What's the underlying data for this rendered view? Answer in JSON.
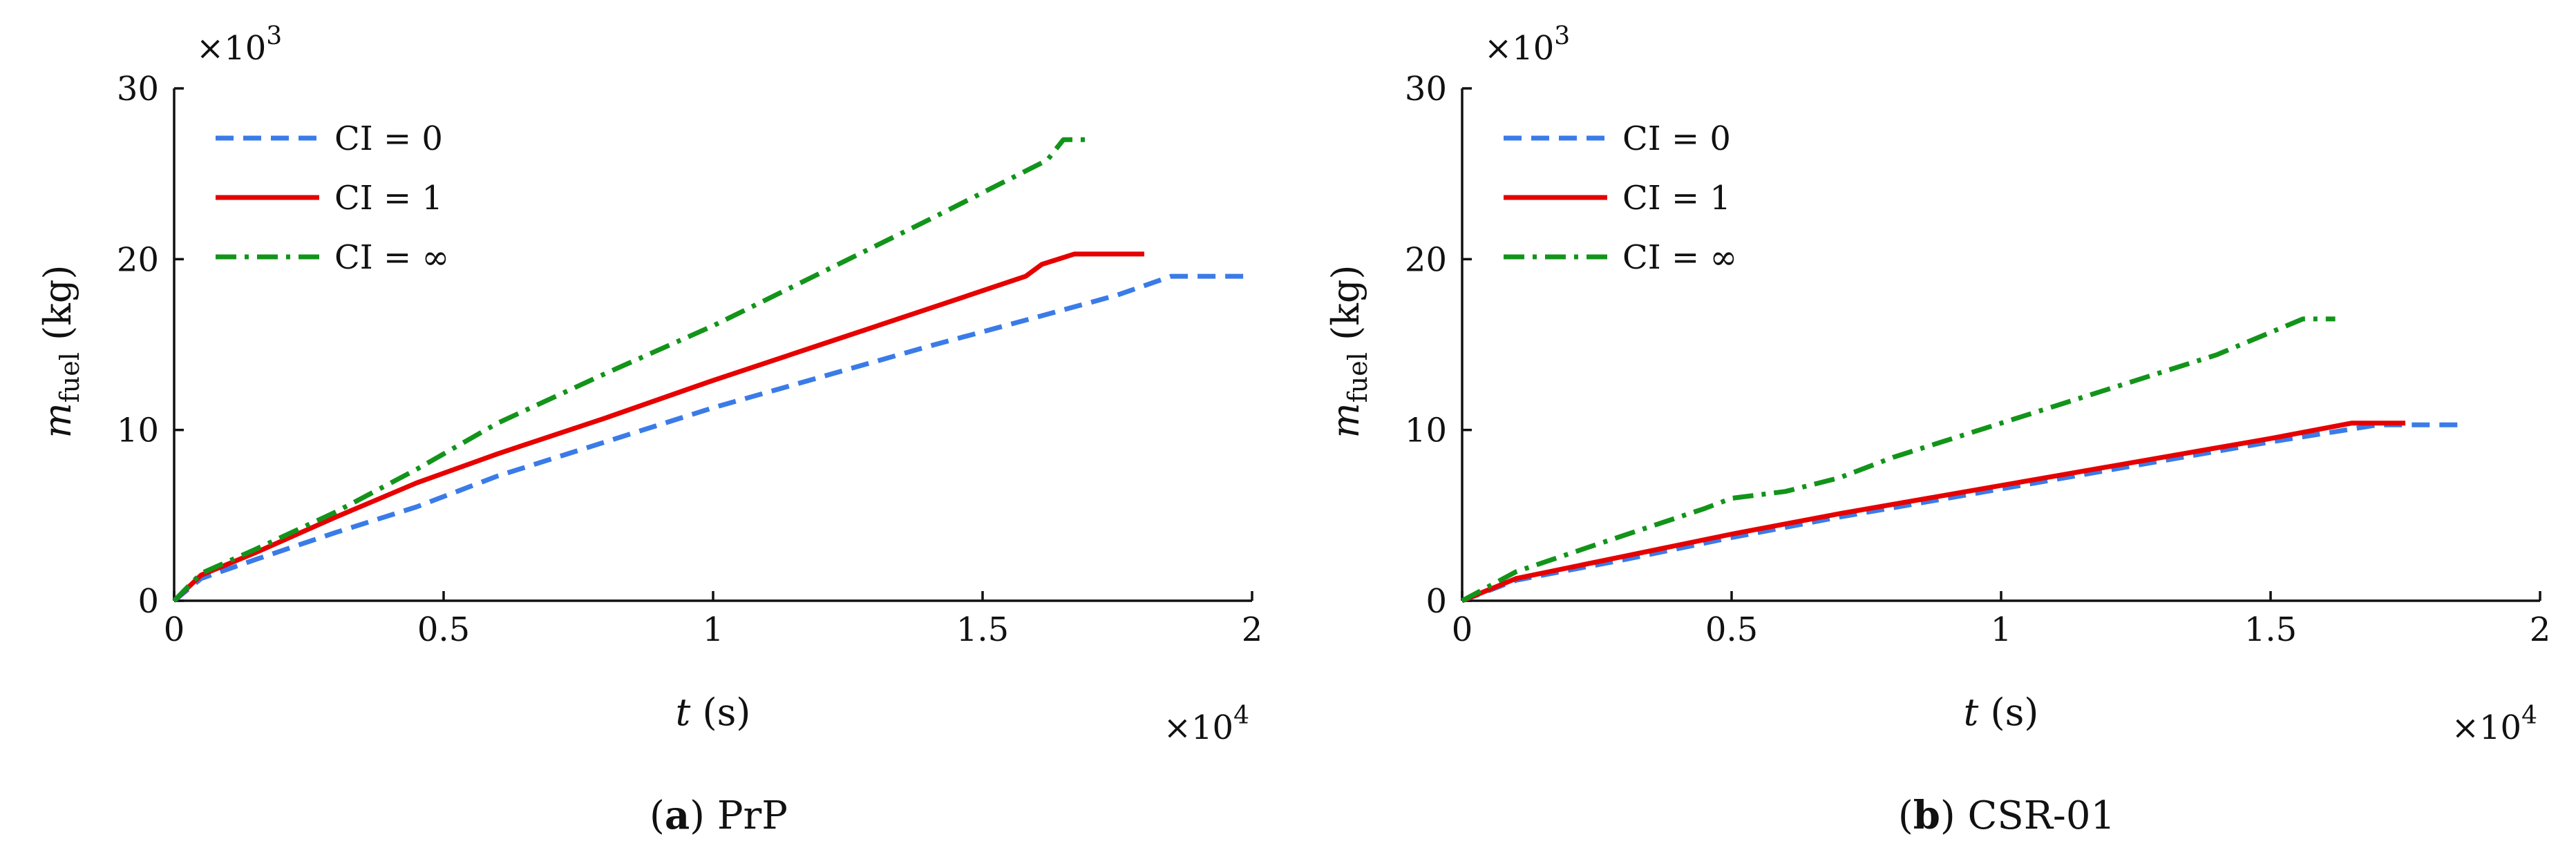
{
  "colors": {
    "ci0": "#3a7be8",
    "ci1": "#e60000",
    "ciinf": "#12941a",
    "axis": "#111111"
  },
  "chart_data": [
    {
      "type": "line",
      "panel": "a",
      "caption": {
        "label": "a",
        "open": "(",
        "close": ")",
        "text": " PrP"
      },
      "xlabel": {
        "var": "t",
        "unit": " (s)"
      },
      "ylabel": {
        "var": "m",
        "sub": "fuel",
        "unit": " (kg)"
      },
      "xlim": [
        0,
        20000
      ],
      "ylim": [
        0,
        30000
      ],
      "xticks": [
        0,
        5000,
        10000,
        15000,
        20000
      ],
      "xtick_labels": [
        "0",
        "0.5",
        "1",
        "1.5",
        "2"
      ],
      "yticks": [
        0,
        10000,
        20000,
        30000
      ],
      "ytick_labels": [
        "0",
        "10",
        "20",
        "30"
      ],
      "x_multiplier": {
        "base": "×10",
        "exp": "4"
      },
      "y_multiplier": {
        "base": "×10",
        "exp": "3"
      },
      "legend_position": "top-left",
      "series": [
        {
          "name": "CI = 0",
          "style": "dashed",
          "color_key": "ci0",
          "x": [
            0,
            500,
            1500,
            3000,
            4500,
            6000,
            8000,
            10000,
            12000,
            14000,
            16000,
            17500,
            18500,
            20000
          ],
          "y": [
            0,
            1300,
            2400,
            4000,
            5500,
            7300,
            9300,
            11300,
            13100,
            14900,
            16600,
            17900,
            19000,
            19000
          ]
        },
        {
          "name": "CI = 1",
          "style": "solid",
          "color_key": "ci1",
          "x": [
            0,
            500,
            1500,
            3000,
            4500,
            6000,
            8000,
            10000,
            12000,
            14000,
            15800,
            16100,
            16700,
            18000
          ],
          "y": [
            0,
            1500,
            2800,
            4900,
            6900,
            8600,
            10700,
            12900,
            15000,
            17100,
            19000,
            19700,
            20300,
            20300
          ]
        },
        {
          "name": "CI = ∞",
          "style": "dashdot",
          "color_key": "ciinf",
          "x": [
            0,
            500,
            1500,
            3000,
            4500,
            6000,
            8000,
            10000,
            12000,
            14000,
            16200,
            16500,
            17000
          ],
          "y": [
            0,
            1600,
            3000,
            5200,
            7700,
            10400,
            13300,
            16100,
            19200,
            22300,
            25800,
            27000,
            27000
          ]
        }
      ]
    },
    {
      "type": "line",
      "panel": "b",
      "caption": {
        "label": "b",
        "open": "(",
        "close": ")",
        "text": " CSR-01"
      },
      "xlabel": {
        "var": "t",
        "unit": " (s)"
      },
      "ylabel": {
        "var": "m",
        "sub": "fuel",
        "unit": " (kg)"
      },
      "xlim": [
        0,
        20000
      ],
      "ylim": [
        0,
        30000
      ],
      "xticks": [
        0,
        5000,
        10000,
        15000,
        20000
      ],
      "xtick_labels": [
        "0",
        "0.5",
        "1",
        "1.5",
        "2"
      ],
      "yticks": [
        0,
        10000,
        20000,
        30000
      ],
      "ytick_labels": [
        "0",
        "10",
        "20",
        "30"
      ],
      "x_multiplier": {
        "base": "×10",
        "exp": "4"
      },
      "y_multiplier": {
        "base": "×10",
        "exp": "3"
      },
      "legend_position": "top-left",
      "series": [
        {
          "name": "CI = 0",
          "style": "dashed",
          "color_key": "ci0",
          "x": [
            0,
            1000,
            3000,
            5000,
            7000,
            9000,
            11000,
            13000,
            15000,
            17000,
            17500,
            18500
          ],
          "y": [
            0,
            1200,
            2400,
            3700,
            4900,
            6000,
            7100,
            8200,
            9300,
            10300,
            10300,
            10300
          ]
        },
        {
          "name": "CI = 1",
          "style": "solid",
          "color_key": "ci1",
          "x": [
            0,
            1000,
            3000,
            5000,
            7000,
            9000,
            11000,
            13000,
            15000,
            16500,
            17500
          ],
          "y": [
            0,
            1300,
            2600,
            3900,
            5100,
            6200,
            7300,
            8400,
            9500,
            10400,
            10400
          ]
        },
        {
          "name": "CI = ∞",
          "style": "dashdot",
          "color_key": "ciinf",
          "x": [
            0,
            1000,
            2500,
            4500,
            5000,
            6000,
            7000,
            8000,
            10000,
            12000,
            14000,
            15600,
            16200
          ],
          "y": [
            0,
            1700,
            3300,
            5400,
            6000,
            6400,
            7200,
            8400,
            10400,
            12400,
            14400,
            16500,
            16500
          ]
        }
      ]
    }
  ]
}
